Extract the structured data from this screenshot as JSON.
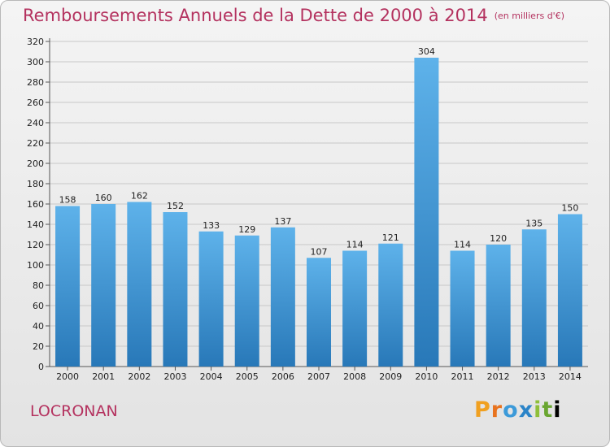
{
  "header": {
    "title": "Remboursements Annuels de la Dette de 2000 à 2014",
    "unit": "(en milliers d'€)"
  },
  "footer": {
    "city": "LOCRONAN",
    "logo": [
      "P",
      "r",
      "o",
      "x",
      "i",
      "t",
      "i"
    ]
  },
  "colors": {
    "bar_light": "#5eb2ea",
    "bar_dark": "#2878b8",
    "title": "#b4325f",
    "grid": "#c8c8c8"
  },
  "chart_data": {
    "type": "bar",
    "title": "Remboursements Annuels de la Dette de 2000 à 2014",
    "unit": "(en milliers d'€)",
    "categories": [
      "2000",
      "2001",
      "2002",
      "2003",
      "2004",
      "2005",
      "2006",
      "2007",
      "2008",
      "2009",
      "2010",
      "2011",
      "2012",
      "2013",
      "2014"
    ],
    "values": [
      158,
      160,
      162,
      152,
      133,
      129,
      137,
      107,
      114,
      121,
      304,
      114,
      120,
      135,
      150
    ],
    "ylim": [
      0,
      320
    ],
    "yticks": [
      0,
      20,
      40,
      60,
      80,
      100,
      120,
      140,
      160,
      180,
      200,
      220,
      240,
      260,
      280,
      300,
      320
    ],
    "grid": true,
    "data_labels": true
  }
}
